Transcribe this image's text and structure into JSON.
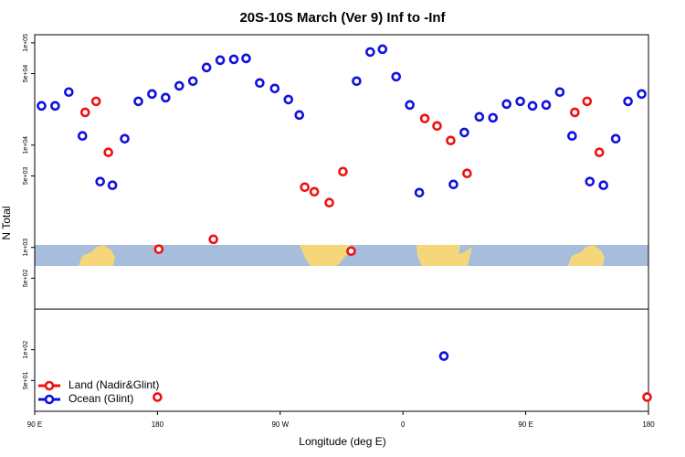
{
  "chart_data": {
    "type": "scatter",
    "title": "20S-10S March (Ver 9)   Inf to -Inf",
    "x_label": "Longitude (deg E)",
    "y_label": "N Total",
    "log_y": true,
    "xlim": [
      90,
      540
    ],
    "xticks": [
      {
        "value": 90,
        "label": "90 E"
      },
      {
        "value": 180,
        "label": "180"
      },
      {
        "value": 270,
        "label": "90 W"
      },
      {
        "value": 360,
        "label": "0"
      },
      {
        "value": 450,
        "label": "90 E"
      },
      {
        "value": 540,
        "label": "180"
      }
    ],
    "ylim": [
      25,
      120000
    ],
    "yticks": [
      {
        "value": 100000,
        "label": "1e+05"
      },
      {
        "value": 50000,
        "label": "5e+04"
      },
      {
        "value": 10000,
        "label": "1e+04"
      },
      {
        "value": 5000,
        "label": "5e+03"
      },
      {
        "value": 1000,
        "label": "1e+03"
      },
      {
        "value": 500,
        "label": "5e+02"
      },
      {
        "value": 100,
        "label": "1e+02"
      },
      {
        "value": 50,
        "label": "5e+01"
      }
    ],
    "hline": 250,
    "series": [
      {
        "name": "Land (Nadir&Glint)",
        "color": "#ee1111",
        "x": [
          127,
          135,
          144,
          181,
          221,
          288,
          295,
          306,
          316,
          322,
          376,
          385,
          395,
          407,
          486,
          495,
          504,
          180,
          539
        ],
        "values": [
          20900,
          26800,
          8490,
          960,
          1200,
          3880,
          3500,
          2740,
          5510,
          920,
          18200,
          15400,
          11100,
          5290,
          20900,
          26800,
          8490,
          34.4,
          34.4
        ]
      },
      {
        "name": "Ocean (Glint)",
        "color": "#1111dd",
        "x": [
          95,
          105,
          115,
          125,
          138,
          147,
          156,
          166,
          176,
          186,
          196,
          206,
          216,
          226,
          236,
          245,
          255,
          266,
          276,
          284,
          326,
          336,
          345,
          355,
          365,
          372,
          397,
          405,
          416,
          426,
          436,
          446,
          455,
          465,
          475,
          484,
          497,
          507,
          516,
          525,
          535,
          390
        ],
        "values": [
          24200,
          24200,
          33000,
          12300,
          4400,
          4050,
          11550,
          26800,
          31600,
          29100,
          38000,
          42200,
          57400,
          67700,
          69000,
          70500,
          40500,
          35800,
          27900,
          19700,
          42200,
          81400,
          86600,
          46700,
          24700,
          3430,
          4130,
          13300,
          18900,
          18500,
          25200,
          26800,
          24200,
          24700,
          33000,
          12300,
          4400,
          4050,
          11550,
          26800,
          31600,
          86.6
        ]
      }
    ],
    "legend": "bottom-left"
  }
}
